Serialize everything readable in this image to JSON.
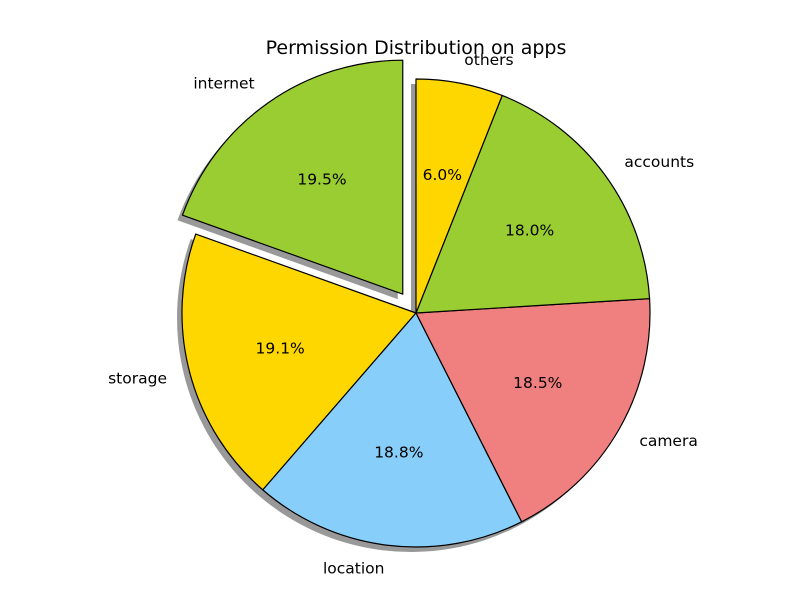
{
  "chart_data": {
    "type": "pie",
    "title": "Permission Distribution on apps",
    "slices": [
      {
        "label": "internet",
        "value": 19.5,
        "pct_label": "19.5%",
        "color": "#9ACD32",
        "exploded": true
      },
      {
        "label": "storage",
        "value": 19.1,
        "pct_label": "19.1%",
        "color": "#FFD700",
        "exploded": false
      },
      {
        "label": "location",
        "value": 18.8,
        "pct_label": "18.8%",
        "color": "#87CEFA",
        "exploded": false
      },
      {
        "label": "camera",
        "value": 18.5,
        "pct_label": "18.5%",
        "color": "#F08080",
        "exploded": false
      },
      {
        "label": "accounts",
        "value": 18.0,
        "pct_label": "18.0%",
        "color": "#9ACD32",
        "exploded": false
      },
      {
        "label": "others",
        "value": 6.0,
        "pct_label": "6.0%",
        "color": "#FFD700",
        "exploded": false
      }
    ],
    "start_angle_deg": 90,
    "direction": "counterclockwise",
    "shadow": true,
    "edge_color": "#000000"
  }
}
